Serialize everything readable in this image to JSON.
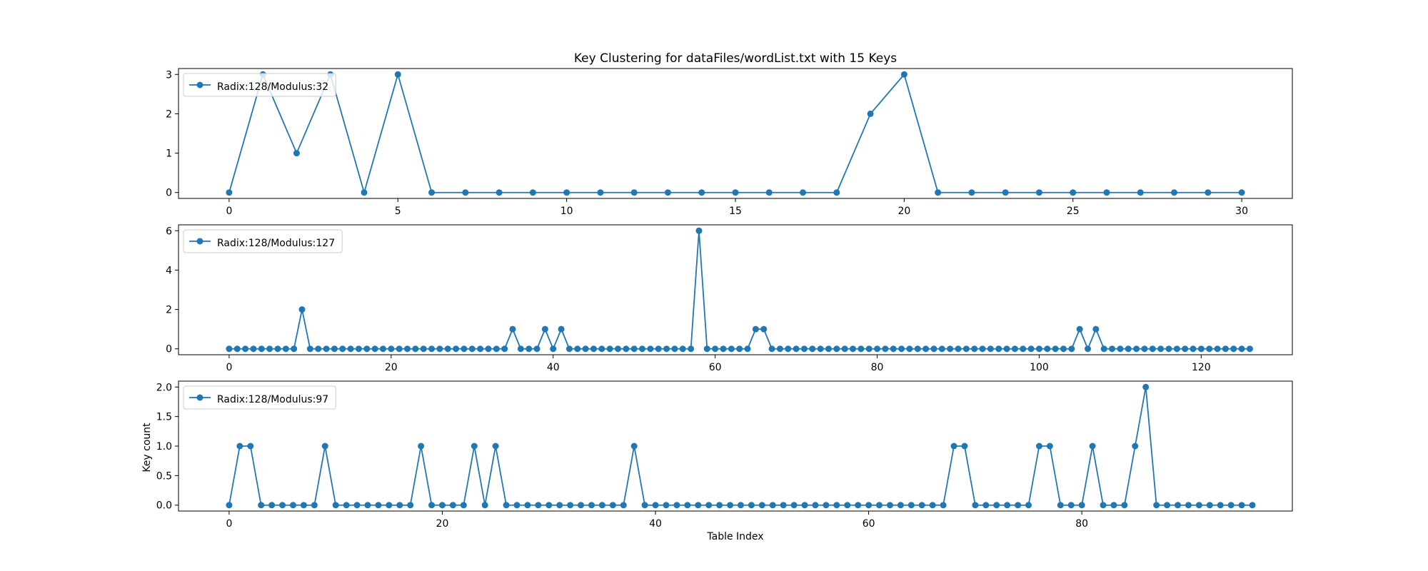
{
  "chart_data": {
    "title": "Key Clustering for dataFiles/wordList.txt with 15 Keys",
    "xlabel": "Table Index",
    "ylabel": "Key count",
    "line_color": "#1f77b4",
    "subplots": [
      {
        "type": "line",
        "series_name": "Radix:128/Modulus:32",
        "legend_position": "upper-left",
        "xlim": [
          -1.5,
          31.5
        ],
        "ylim": [
          -0.15,
          3.15
        ],
        "xticks": [
          0,
          5,
          10,
          15,
          20,
          25,
          30
        ],
        "yticks": [
          0,
          1,
          2,
          3
        ],
        "values": [
          0,
          3,
          1,
          3,
          0,
          3,
          0,
          0,
          0,
          0,
          0,
          0,
          0,
          0,
          0,
          0,
          0,
          0,
          0,
          2,
          3,
          0,
          0,
          0,
          0,
          0,
          0,
          0,
          0,
          0,
          0
        ]
      },
      {
        "type": "line",
        "series_name": "Radix:128/Modulus:127",
        "legend_position": "upper-left",
        "xlim": [
          -6.25,
          131.25
        ],
        "ylim": [
          -0.3,
          6.3
        ],
        "xticks": [
          0,
          20,
          40,
          60,
          80,
          100,
          120
        ],
        "yticks": [
          0,
          2,
          4,
          6
        ],
        "values": [
          0,
          0,
          0,
          0,
          0,
          0,
          0,
          0,
          0,
          2,
          0,
          0,
          0,
          0,
          0,
          0,
          0,
          0,
          0,
          0,
          0,
          0,
          0,
          0,
          0,
          0,
          0,
          0,
          0,
          0,
          0,
          0,
          0,
          0,
          0,
          1,
          0,
          0,
          0,
          1,
          0,
          1,
          0,
          0,
          0,
          0,
          0,
          0,
          0,
          0,
          0,
          0,
          0,
          0,
          0,
          0,
          0,
          0,
          6,
          0,
          0,
          0,
          0,
          0,
          0,
          1,
          1,
          0,
          0,
          0,
          0,
          0,
          0,
          0,
          0,
          0,
          0,
          0,
          0,
          0,
          0,
          0,
          0,
          0,
          0,
          0,
          0,
          0,
          0,
          0,
          0,
          0,
          0,
          0,
          0,
          0,
          0,
          0,
          0,
          0,
          0,
          0,
          0,
          0,
          0,
          1,
          0,
          1,
          0,
          0,
          0,
          0,
          0,
          0,
          0,
          0,
          0,
          0,
          0,
          0,
          0,
          0,
          0,
          0,
          0,
          0,
          0
        ]
      },
      {
        "type": "line",
        "series_name": "Radix:128/Modulus:97",
        "legend_position": "upper-left",
        "xlim": [
          -4.75,
          99.75
        ],
        "ylim": [
          -0.1,
          2.1
        ],
        "xticks": [
          0,
          20,
          40,
          60,
          80
        ],
        "yticks": [
          0.0,
          0.5,
          1.0,
          1.5,
          2.0
        ],
        "ytick_labels": [
          "0.0",
          "0.5",
          "1.0",
          "1.5",
          "2.0"
        ],
        "values": [
          0,
          1,
          1,
          0,
          0,
          0,
          0,
          0,
          0,
          1,
          0,
          0,
          0,
          0,
          0,
          0,
          0,
          0,
          1,
          0,
          0,
          0,
          0,
          1,
          0,
          1,
          0,
          0,
          0,
          0,
          0,
          0,
          0,
          0,
          0,
          0,
          0,
          0,
          1,
          0,
          0,
          0,
          0,
          0,
          0,
          0,
          0,
          0,
          0,
          0,
          0,
          0,
          0,
          0,
          0,
          0,
          0,
          0,
          0,
          0,
          0,
          0,
          0,
          0,
          0,
          0,
          0,
          0,
          1,
          1,
          0,
          0,
          0,
          0,
          0,
          0,
          1,
          1,
          0,
          0,
          0,
          1,
          0,
          0,
          0,
          1,
          2,
          0,
          0,
          0,
          0,
          0,
          0,
          0,
          0,
          0,
          0
        ]
      }
    ]
  }
}
